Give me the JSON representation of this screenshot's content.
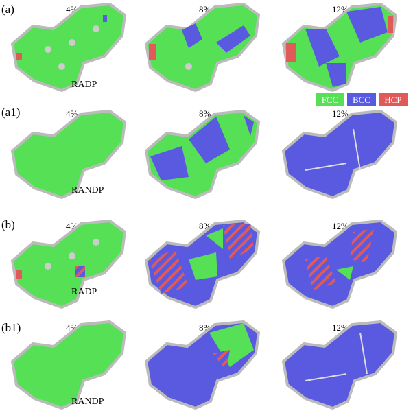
{
  "colors": {
    "fcc": "#55e055",
    "bcc": "#5a5ae0",
    "hcp": "#e05a5a",
    "other": "#c8c8c8"
  },
  "legend": [
    {
      "label": "FCC",
      "color": "#55e055"
    },
    {
      "label": "BCC",
      "color": "#5a5ae0"
    },
    {
      "label": "HCP",
      "color": "#e05a5a"
    }
  ],
  "rows": [
    {
      "label": "(a)",
      "type": "RADP",
      "strains": [
        "4%",
        "8%",
        "12%"
      ]
    },
    {
      "label": "(a1)",
      "type": "RANDP",
      "strains": [
        "4%",
        "8%",
        "12%"
      ]
    },
    {
      "label": "(b)",
      "type": "RADP",
      "strains": [
        "4%",
        "8%",
        "12%"
      ]
    },
    {
      "label": "(b1)",
      "type": "RANDP",
      "strains": [
        "4%",
        "8%",
        "12%"
      ]
    }
  ]
}
